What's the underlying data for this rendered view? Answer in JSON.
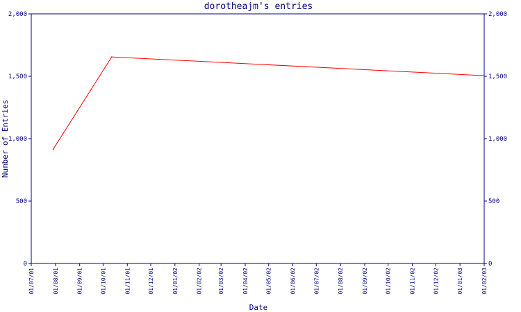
{
  "chart_data": {
    "type": "line",
    "title": "dorotheajm's entries",
    "xlabel": "Date",
    "ylabel": "Number of Entries",
    "ylim": [
      0,
      2000
    ],
    "y_ticks": [
      0,
      500,
      1000,
      1500,
      2000
    ],
    "y_tick_labels": [
      "0",
      "500",
      "1,000",
      "1,500",
      "2,000"
    ],
    "x_range": [
      "2001-07-01",
      "2003-02-01"
    ],
    "x_ticks": [
      "2001-07-01",
      "2001-08-01",
      "2001-09-01",
      "2001-10-01",
      "2001-11-01",
      "2001-12-01",
      "2002-01-01",
      "2002-02-01",
      "2002-03-01",
      "2002-04-01",
      "2002-05-01",
      "2002-06-01",
      "2002-07-01",
      "2002-08-01",
      "2002-09-01",
      "2002-10-01",
      "2002-11-01",
      "2002-12-01",
      "2003-01-01",
      "2003-02-01"
    ],
    "x_tick_labels": [
      "01/07/01",
      "01/08/01",
      "01/09/01",
      "01/10/01",
      "01/11/01",
      "01/12/01",
      "01/01/02",
      "01/02/02",
      "01/03/02",
      "01/04/02",
      "01/05/02",
      "01/06/02",
      "01/07/02",
      "01/08/02",
      "01/09/02",
      "01/10/02",
      "01/11/02",
      "01/12/02",
      "01/01/03",
      "01/02/03"
    ],
    "series": [
      {
        "x": [
          "2001-07-29",
          "2001-10-12",
          "2003-02-01"
        ],
        "y": [
          915,
          1655,
          1505
        ]
      }
    ],
    "grid": false,
    "dual_y_axis": true,
    "colors": {
      "line": "#ff0000",
      "axis": "#000080",
      "text": "#000080"
    }
  }
}
